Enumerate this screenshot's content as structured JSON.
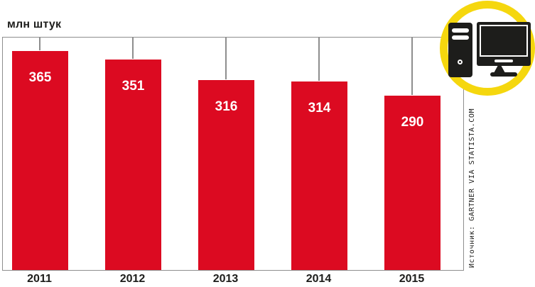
{
  "chart_data": {
    "type": "bar",
    "title": "",
    "unit_label": "млн штук",
    "categories": [
      "2011",
      "2012",
      "2013",
      "2014",
      "2015"
    ],
    "values": [
      365,
      351,
      316,
      314,
      290
    ],
    "xlabel": "",
    "ylabel": "млн штук",
    "ylim": [
      0,
      390
    ],
    "grid": false,
    "legend": "none",
    "bar_color": "#dc0a21",
    "value_label_color": "#ffffff",
    "axis_line_color": "#8e8e8e",
    "value_labels_inside_bars": true
  },
  "source": {
    "label": "Источник: GARTNER VIA STATISTA.COM"
  },
  "icon_badge": {
    "name": "desktop-computer-icon",
    "ring_color": "#f5d70e",
    "glyph_color": "#1d1d1b"
  }
}
